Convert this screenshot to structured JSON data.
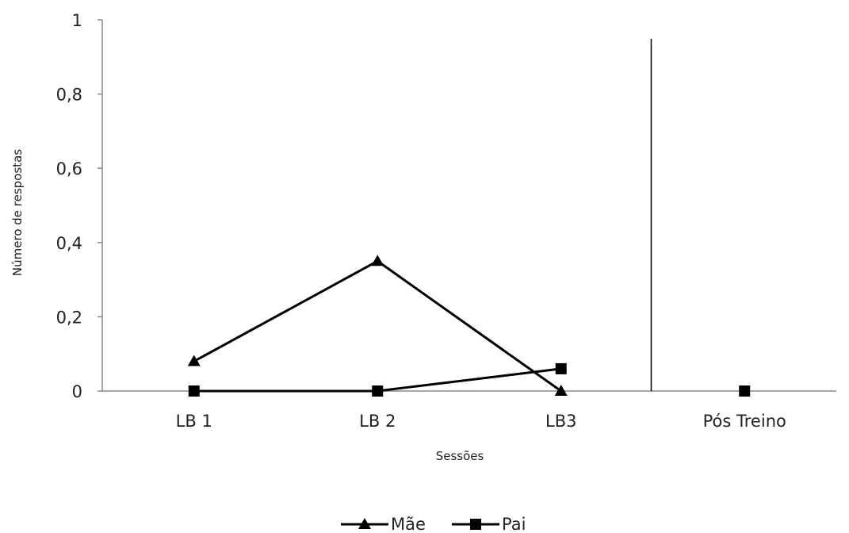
{
  "chart_data": {
    "type": "line",
    "title": "",
    "xlabel": "Sessões",
    "ylabel": "Número de respostas",
    "categories": [
      "LB 1",
      "LB 2",
      "LB3",
      "Pós Treino"
    ],
    "ylim": [
      0,
      1
    ],
    "yticks": [
      "0",
      "0,2",
      "0,4",
      "0,6",
      "0,8",
      "1"
    ],
    "ytick_values": [
      0,
      0.2,
      0.4,
      0.6,
      0.8,
      1
    ],
    "grid": false,
    "legend_position": "bottom",
    "phase_change_line_after_category": "LB3",
    "series": [
      {
        "name": "Mãe",
        "marker": "triangle",
        "color": "#000000",
        "values": [
          0.08,
          0.35,
          0,
          null
        ]
      },
      {
        "name": "Pai",
        "marker": "square",
        "color": "#000000",
        "values": [
          0,
          0,
          0.06,
          0
        ],
        "connected_points": 3
      }
    ]
  }
}
